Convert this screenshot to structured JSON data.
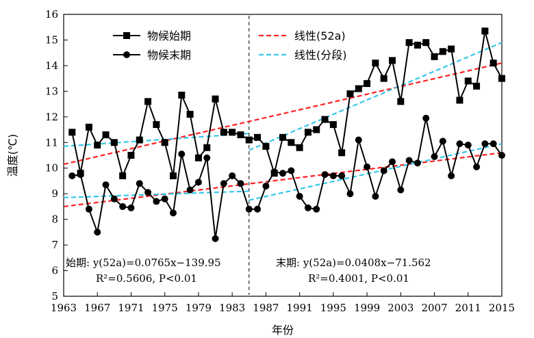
{
  "chart_data": {
    "type": "line",
    "xlabel": "年份",
    "ylabel": "温度(℃)",
    "xlim": [
      1963,
      2015
    ],
    "ylim": [
      5,
      16
    ],
    "x_ticks": [
      1963,
      1967,
      1971,
      1975,
      1979,
      1983,
      1987,
      1991,
      1995,
      1999,
      2003,
      2007,
      2011,
      2015
    ],
    "y_ticks": [
      5,
      6,
      7,
      8,
      9,
      10,
      11,
      12,
      13,
      14,
      15,
      16
    ],
    "divider_x": 1985,
    "legend": {
      "placement": "top",
      "items": [
        {
          "label": "物候始期",
          "kind": "series-square"
        },
        {
          "label": "物候末期",
          "kind": "series-circle"
        },
        {
          "label": "线性(52a)",
          "kind": "dash-red"
        },
        {
          "label": "线性(分段)",
          "kind": "dash-cyan"
        }
      ]
    },
    "series": [
      {
        "name": "物候始期",
        "marker": "square",
        "x": [
          1964,
          1965,
          1966,
          1967,
          1968,
          1969,
          1970,
          1971,
          1972,
          1973,
          1974,
          1975,
          1976,
          1977,
          1978,
          1979,
          1980,
          1981,
          1982,
          1983,
          1984,
          1985,
          1986,
          1987,
          1988,
          1989,
          1990,
          1991,
          1992,
          1993,
          1994,
          1995,
          1996,
          1997,
          1998,
          1999,
          2000,
          2001,
          2002,
          2003,
          2004,
          2005,
          2006,
          2007,
          2008,
          2009,
          2010,
          2011,
          2012,
          2013,
          2014,
          2015
        ],
        "values": [
          11.4,
          9.8,
          11.6,
          10.9,
          11.3,
          11.0,
          9.7,
          10.5,
          11.1,
          12.6,
          11.7,
          11.0,
          9.7,
          12.85,
          12.1,
          10.4,
          10.8,
          12.7,
          11.4,
          11.4,
          11.3,
          11.1,
          11.2,
          10.85,
          9.8,
          11.2,
          11.0,
          10.8,
          11.4,
          11.5,
          11.9,
          11.7,
          10.6,
          12.9,
          13.1,
          13.3,
          14.1,
          13.5,
          14.2,
          12.6,
          14.9,
          14.8,
          14.9,
          14.35,
          14.55,
          14.65,
          12.65,
          13.4,
          13.2,
          15.35,
          14.1,
          13.5
        ]
      },
      {
        "name": "物候末期",
        "marker": "circle",
        "x": [
          1964,
          1965,
          1966,
          1967,
          1968,
          1969,
          1970,
          1971,
          1972,
          1973,
          1974,
          1975,
          1976,
          1977,
          1978,
          1979,
          1980,
          1981,
          1982,
          1983,
          1984,
          1985,
          1986,
          1987,
          1988,
          1989,
          1990,
          1991,
          1992,
          1993,
          1994,
          1995,
          1996,
          1997,
          1998,
          1999,
          2000,
          2001,
          2002,
          2003,
          2004,
          2005,
          2006,
          2007,
          2008,
          2009,
          2010,
          2011,
          2012,
          2013,
          2014,
          2015
        ],
        "values": [
          9.7,
          9.75,
          8.4,
          7.5,
          9.35,
          8.8,
          8.5,
          8.45,
          9.4,
          9.05,
          8.7,
          8.8,
          8.25,
          10.55,
          9.15,
          9.45,
          10.4,
          7.25,
          9.4,
          9.7,
          9.4,
          8.4,
          8.4,
          9.3,
          9.85,
          9.8,
          9.9,
          8.9,
          8.45,
          8.4,
          9.75,
          9.7,
          9.7,
          9.0,
          11.1,
          10.05,
          8.9,
          9.9,
          10.25,
          9.15,
          10.3,
          10.2,
          11.95,
          10.45,
          11.05,
          9.7,
          10.95,
          10.9,
          10.05,
          10.95,
          10.95,
          10.5
        ]
      }
    ],
    "trendlines": [
      {
        "label": "线性(52a)",
        "color": "#ff2020",
        "x": [
          1963,
          2015
        ],
        "y": [
          10.15,
          14.1
        ]
      },
      {
        "label": "线性(分段)",
        "color": "#33c6ea",
        "x": [
          1963,
          1985
        ],
        "y": [
          10.85,
          11.35
        ]
      },
      {
        "label": "线性(分段)",
        "color": "#33c6ea",
        "x": [
          1985,
          2015
        ],
        "y": [
          10.7,
          14.9
        ]
      },
      {
        "label": "线性(52a)",
        "color": "#ff2020",
        "x": [
          1963,
          2015
        ],
        "y": [
          8.5,
          10.6
        ]
      },
      {
        "label": "线性(分段)",
        "color": "#33c6ea",
        "x": [
          1963,
          1985
        ],
        "y": [
          8.85,
          9.1
        ]
      },
      {
        "label": "线性(分段)",
        "color": "#33c6ea",
        "x": [
          1985,
          2015
        ],
        "y": [
          8.75,
          10.95
        ]
      }
    ],
    "annotations": {
      "left": {
        "line1": "始期: y(52a)=0.0765x−139.95",
        "line2": "R²=0.5606, P<0.01"
      },
      "right": {
        "line1": "末期: y(52a)=0.0408x−71.562",
        "line2": "R²=0.4001, P<0.01"
      }
    },
    "colors": {
      "series": "#000000",
      "linear_52a": "#ff2020",
      "linear_segment": "#33c6ea"
    }
  }
}
